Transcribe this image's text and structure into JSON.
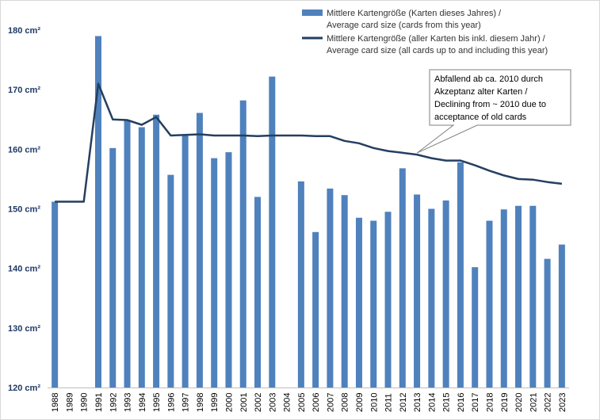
{
  "chart_data": {
    "type": "bar",
    "categories": [
      "1988",
      "1989",
      "1990",
      "1991",
      "1992",
      "1993",
      "1994",
      "1995",
      "1996",
      "1997",
      "1998",
      "1999",
      "2000",
      "2001",
      "2002",
      "2003",
      "2004",
      "2005",
      "2006",
      "2007",
      "2008",
      "2009",
      "2010",
      "2011",
      "2012",
      "2013",
      "2014",
      "2015",
      "2016",
      "2017",
      "2018",
      "2019",
      "2020",
      "2021",
      "2022",
      "2023"
    ],
    "series": [
      {
        "name": "Mittlere Kartengröße (Karten dieses Jahres) / Average card size (cards from this year)",
        "legend_lines": [
          "Mittlere Kartengröße (Karten dieses Jahres) /",
          "Average card size (cards from this year)"
        ],
        "type": "bar",
        "color": "#4f81bd",
        "values": [
          151.2,
          null,
          null,
          179.0,
          160.2,
          164.8,
          163.7,
          165.8,
          155.7,
          162.4,
          166.1,
          158.5,
          159.5,
          168.2,
          152.0,
          172.2,
          null,
          154.6,
          146.1,
          153.4,
          152.3,
          148.5,
          148.0,
          149.5,
          156.8,
          152.4,
          150.0,
          151.4,
          157.8,
          140.2,
          148.0,
          149.9,
          150.5,
          150.5,
          141.6,
          144.0
        ]
      },
      {
        "name": "Mittlere Kartengröße (aller Karten bis inkl. diesem Jahr) / Average card size (all cards up to and including this year)",
        "legend_lines": [
          "Mittlere Kartengröße (aller Karten bis inkl. diesem Jahr) /",
          "Average card size (all cards up to and including this year)"
        ],
        "type": "line",
        "color": "#243f60",
        "values": [
          151.2,
          151.2,
          151.2,
          171.0,
          165.0,
          164.9,
          164.1,
          165.4,
          162.3,
          162.4,
          162.5,
          162.3,
          162.3,
          162.3,
          162.2,
          162.3,
          162.3,
          162.3,
          162.2,
          162.2,
          161.4,
          161.0,
          160.2,
          159.7,
          159.4,
          159.1,
          158.5,
          158.1,
          158.1,
          157.3,
          156.4,
          155.6,
          155.0,
          154.9,
          154.5,
          154.2
        ]
      }
    ],
    "yticks": [
      "120 cm²",
      "130 cm²",
      "140 cm²",
      "150 cm²",
      "160 cm²",
      "170 cm²",
      "180 cm²"
    ],
    "ylim": [
      120,
      182
    ],
    "grid": false,
    "legend_position": "top-right",
    "annotation": {
      "lines": [
        "Abfallend ab ca. 2010 durch",
        "Akzeptanz alter Karten /",
        "Declining from ~ 2010 due to",
        "acceptance of old cards"
      ],
      "points_to": "2013"
    }
  }
}
